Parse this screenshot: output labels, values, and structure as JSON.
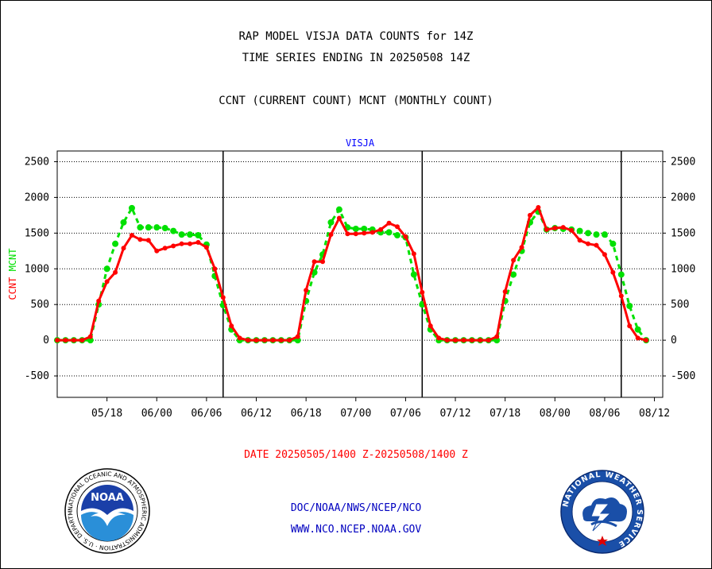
{
  "header": {
    "title_line1": "RAP MODEL VISJA DATA COUNTS for 14Z",
    "title_line2": "TIME SERIES ENDING IN 20250508 14Z",
    "subtitle": "CCNT (CURRENT COUNT) MCNT (MONTHLY COUNT)"
  },
  "footer": {
    "date_range": "DATE 20250505/1400 Z-20250508/1400 Z",
    "link1": "DOC/NOAA/NWS/NCEP/NCO",
    "link2": "WWW.NCO.NCEP.NOAA.GOV",
    "noaa_logo_text": "NOAA",
    "noaa_ring_text": "NATIONAL OCEANIC AND ATMOSPHERIC ADMINISTRATION · U.S. DEPARTMENT OF COMMERCE ·",
    "nws_ring_text": "NATIONAL WEATHER SERVICE"
  },
  "colors": {
    "ccnt": "#ff0000",
    "mcnt": "#00e000",
    "panel_label": "#0000ff",
    "date_label": "#ff0000",
    "link": "#0000c0"
  },
  "chart_data": {
    "type": "line",
    "title": "VISJA",
    "ylabel_left_parts": [
      "CCNT",
      "MCNT"
    ],
    "ylim": [
      -800,
      2650
    ],
    "yticks": [
      -500,
      0,
      500,
      1000,
      1500,
      2000,
      2500
    ],
    "xlim": [
      0,
      73
    ],
    "xticks": [
      {
        "x": 6,
        "label": "05/18"
      },
      {
        "x": 12,
        "label": "06/00"
      },
      {
        "x": 18,
        "label": "06/06"
      },
      {
        "x": 24,
        "label": "06/12"
      },
      {
        "x": 30,
        "label": "06/18"
      },
      {
        "x": 36,
        "label": "07/00"
      },
      {
        "x": 42,
        "label": "07/06"
      },
      {
        "x": 48,
        "label": "07/12"
      },
      {
        "x": 54,
        "label": "07/18"
      },
      {
        "x": 60,
        "label": "08/00"
      },
      {
        "x": 66,
        "label": "08/06"
      },
      {
        "x": 72,
        "label": "08/12"
      }
    ],
    "day_boundaries": [
      20,
      44,
      68
    ],
    "grid": "horizontal-dotted",
    "series": [
      {
        "name": "CCNT",
        "values": [
          0,
          0,
          0,
          0,
          50,
          550,
          820,
          950,
          1290,
          1470,
          1410,
          1400,
          1250,
          1290,
          1320,
          1350,
          1350,
          1370,
          1300,
          1000,
          600,
          200,
          30,
          0,
          0,
          0,
          0,
          0,
          0,
          50,
          700,
          1100,
          1100,
          1480,
          1710,
          1490,
          1490,
          1500,
          1510,
          1550,
          1640,
          1590,
          1450,
          1210,
          670,
          200,
          30,
          0,
          0,
          0,
          0,
          0,
          0,
          50,
          680,
          1120,
          1300,
          1750,
          1860,
          1550,
          1570,
          1580,
          1540,
          1400,
          1350,
          1330,
          1200,
          950,
          620,
          200,
          30,
          0
        ]
      },
      {
        "name": "MCNT",
        "values": [
          0,
          0,
          0,
          0,
          0,
          500,
          1000,
          1350,
          1650,
          1850,
          1580,
          1580,
          1580,
          1570,
          1530,
          1480,
          1480,
          1470,
          1340,
          900,
          490,
          150,
          0,
          0,
          0,
          0,
          0,
          0,
          0,
          0,
          550,
          950,
          1200,
          1650,
          1830,
          1580,
          1560,
          1560,
          1550,
          1510,
          1510,
          1470,
          1440,
          920,
          500,
          150,
          0,
          0,
          0,
          0,
          0,
          0,
          0,
          0,
          550,
          920,
          1250,
          1650,
          1800,
          1550,
          1570,
          1560,
          1550,
          1530,
          1500,
          1480,
          1480,
          1350,
          920,
          480,
          150,
          0
        ]
      }
    ]
  }
}
